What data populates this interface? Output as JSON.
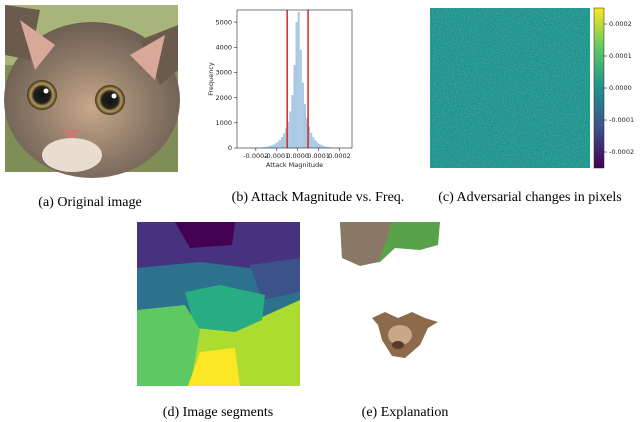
{
  "captions": [
    "(a) Original image",
    "(b) Attack Magnitude vs. Freq.",
    "(c) Adversarial changes in pixels",
    "(d) Image segments",
    "(e) Explanation"
  ],
  "chart_data": [
    {
      "type": "histogram",
      "xlabel": "Attack Magnitude",
      "ylabel": "Frequency",
      "color": "#a9c8e4",
      "bins": [
        -0.0002,
        -0.00019,
        -0.00018,
        -0.00017,
        -0.00016,
        -0.00015,
        -0.00014,
        -0.00013,
        -0.00012,
        -0.00011,
        -0.0001,
        -9e-05,
        -8e-05,
        -7e-05,
        -6e-05,
        -5e-05,
        -4e-05,
        -3e-05,
        -2e-05,
        -1e-05,
        0,
        1e-05,
        2e-05,
        3e-05,
        4e-05,
        5e-05,
        6e-05,
        7e-05,
        8e-05,
        9e-05,
        0.0001,
        0.00011,
        0.00012,
        0.00013,
        0.00014,
        0.00015,
        0.00016,
        0.00017,
        0.00018,
        0.00019,
        0.0002
      ],
      "values": [
        10,
        15,
        20,
        30,
        40,
        55,
        75,
        100,
        135,
        180,
        240,
        320,
        430,
        580,
        780,
        1050,
        1450,
        2100,
        3300,
        5000,
        5400,
        3900,
        2600,
        1750,
        1200,
        850,
        600,
        430,
        310,
        220,
        160,
        115,
        80,
        55,
        40,
        28,
        20,
        14,
        10,
        6
      ],
      "xlim": [
        -0.00029,
        0.00026
      ],
      "ylim": [
        0,
        5480
      ],
      "xticks": [
        -0.0002,
        -0.0001,
        {
          "value": 0,
          "label": "0.0000"
        },
        0.0001,
        0.0002
      ],
      "yticks": [
        0,
        1000,
        2000,
        3000,
        4000,
        5000
      ],
      "vlines": [
        -5e-05,
        5e-05
      ],
      "vline_color": "#d62728"
    },
    {
      "type": "heatmap",
      "colorbar_lim": [
        -0.00025,
        0.00025
      ],
      "colorbar_ticks": [
        0.0002,
        0.0001,
        {
          "value": 0,
          "label": "0.0000"
        },
        -0.0001,
        -0.0002
      ]
    }
  ]
}
